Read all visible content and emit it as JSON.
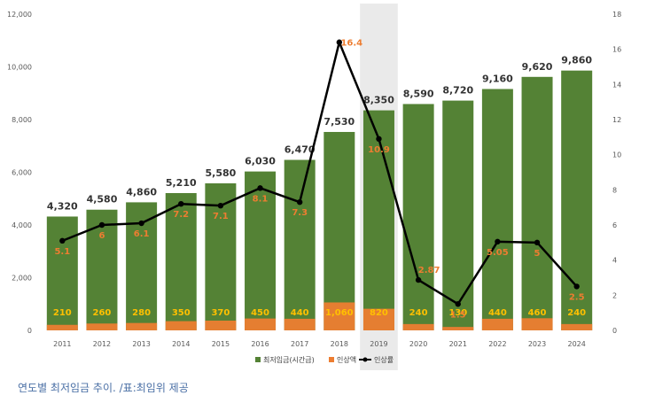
{
  "caption": "연도별 최저임금 추이. /표:최임위 제공",
  "colors": {
    "wage_bar": "#548235",
    "increase_bar": "#ed7d31",
    "rate_line": "#000000",
    "wage_label": "#333333",
    "increase_label": "#ffc000",
    "rate_label": "#ed7d31",
    "highlight_band": "#d9d9d9"
  },
  "legend": {
    "wage": "최저임금(시간급)",
    "increase": "인상액",
    "rate": "인상률"
  },
  "chart_data": {
    "type": "bar",
    "categories": [
      "2011",
      "2012",
      "2013",
      "2014",
      "2015",
      "2016",
      "2017",
      "2018",
      "2019",
      "2020",
      "2021",
      "2022",
      "2023",
      "2024"
    ],
    "highlight_category": "2019",
    "series": [
      {
        "name": "최저임금(시간급)",
        "type": "bar",
        "axis": "left",
        "values": [
          4320,
          4580,
          4860,
          5210,
          5580,
          6030,
          6470,
          7530,
          8350,
          8590,
          8720,
          9160,
          9620,
          9860
        ],
        "labels": [
          "4,320",
          "4,580",
          "4,860",
          "5,210",
          "5,580",
          "6,030",
          "6,470",
          "7,530",
          "8,350",
          "8,590",
          "8,720",
          "9,160",
          "9,620",
          "9,860"
        ]
      },
      {
        "name": "인상액",
        "type": "bar",
        "axis": "left",
        "values": [
          210,
          260,
          280,
          350,
          370,
          450,
          440,
          1060,
          820,
          240,
          130,
          440,
          460,
          240
        ],
        "labels": [
          "210",
          "260",
          "280",
          "350",
          "370",
          "450",
          "440",
          "1,060",
          "820",
          "240",
          "130",
          "440",
          "460",
          "240"
        ]
      },
      {
        "name": "인상률",
        "type": "line",
        "axis": "right",
        "values": [
          5.1,
          6,
          6.1,
          7.2,
          7.1,
          8.1,
          7.3,
          16.4,
          10.9,
          2.87,
          1.5,
          5.05,
          5,
          2.5
        ],
        "labels": [
          "5.1",
          "6",
          "6.1",
          "7.2",
          "7.1",
          "8.1",
          "7.3",
          "16.4",
          "10.9",
          "2.87",
          "1.5",
          "5.05",
          "5",
          "2.5"
        ]
      }
    ],
    "y_left": {
      "min": 0,
      "max": 12000,
      "ticks": [
        "0",
        "2,000",
        "4,000",
        "6,000",
        "8,000",
        "10,000",
        "12,000"
      ]
    },
    "y_right": {
      "min": 0,
      "max": 18,
      "ticks": [
        "0",
        "2",
        "4",
        "6",
        "8",
        "10",
        "12",
        "14",
        "16",
        "18"
      ]
    },
    "grid": false,
    "legend_position": "bottom-center"
  }
}
